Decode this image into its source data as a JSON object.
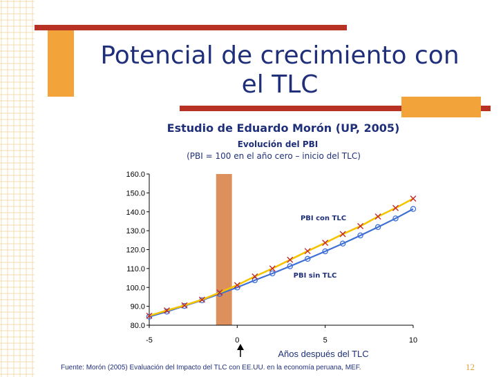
{
  "slide": {
    "title_line1": "Potencial de crecimiento con",
    "title_line2": "el TLC",
    "study_title": "Estudio de Eduardo Morón (UP, 2005)",
    "source": "Fuente: Morón (2005) Evaluación del Impacto del TLC con EE.UU. en la economía peruana, MEF.",
    "page_number": "12"
  },
  "colors": {
    "title": "#1f2f7a",
    "accent_red": "#b73125",
    "accent_orange": "#f2a43a",
    "con_tlc_line": "#f5c400",
    "con_tlc_marker": "#c0282e",
    "sin_tlc": "#3d6fd6",
    "highlight_band": "#d9834a"
  },
  "chart_data": {
    "type": "line",
    "title": "Evolución del PBI",
    "subtitle": "(PBI = 100 en el año cero – inicio del TLC)",
    "xlabel": "Años después del TLC",
    "ylabel": "",
    "x": [
      -5,
      -4,
      -3,
      -2,
      -1,
      0,
      1,
      2,
      3,
      4,
      5,
      6,
      7,
      8,
      9,
      10
    ],
    "xlim": [
      -5,
      10
    ],
    "ylim": [
      80,
      160
    ],
    "xticks": [
      "-5",
      "0",
      "5",
      "10"
    ],
    "yticks": [
      "80.0",
      "90.0",
      "100.0",
      "110.0",
      "120.0",
      "130.0",
      "140.0",
      "150.0",
      "160.0"
    ],
    "grid": false,
    "highlight_band": [
      -1.2,
      -0.3
    ],
    "series": [
      {
        "name": "PBI con TLC",
        "marker": "x",
        "values": [
          85.0,
          87.8,
          90.5,
          93.5,
          97.3,
          101.2,
          105.8,
          110.0,
          114.6,
          119.2,
          123.6,
          128.2,
          132.4,
          137.5,
          142.0,
          147.0
        ]
      },
      {
        "name": "PBI sin TLC",
        "marker": "o",
        "values": [
          84.5,
          87.2,
          90.2,
          93.2,
          96.6,
          100.0,
          103.8,
          107.4,
          111.2,
          115.1,
          119.1,
          123.2,
          127.5,
          131.9,
          136.5,
          141.5
        ]
      }
    ]
  }
}
